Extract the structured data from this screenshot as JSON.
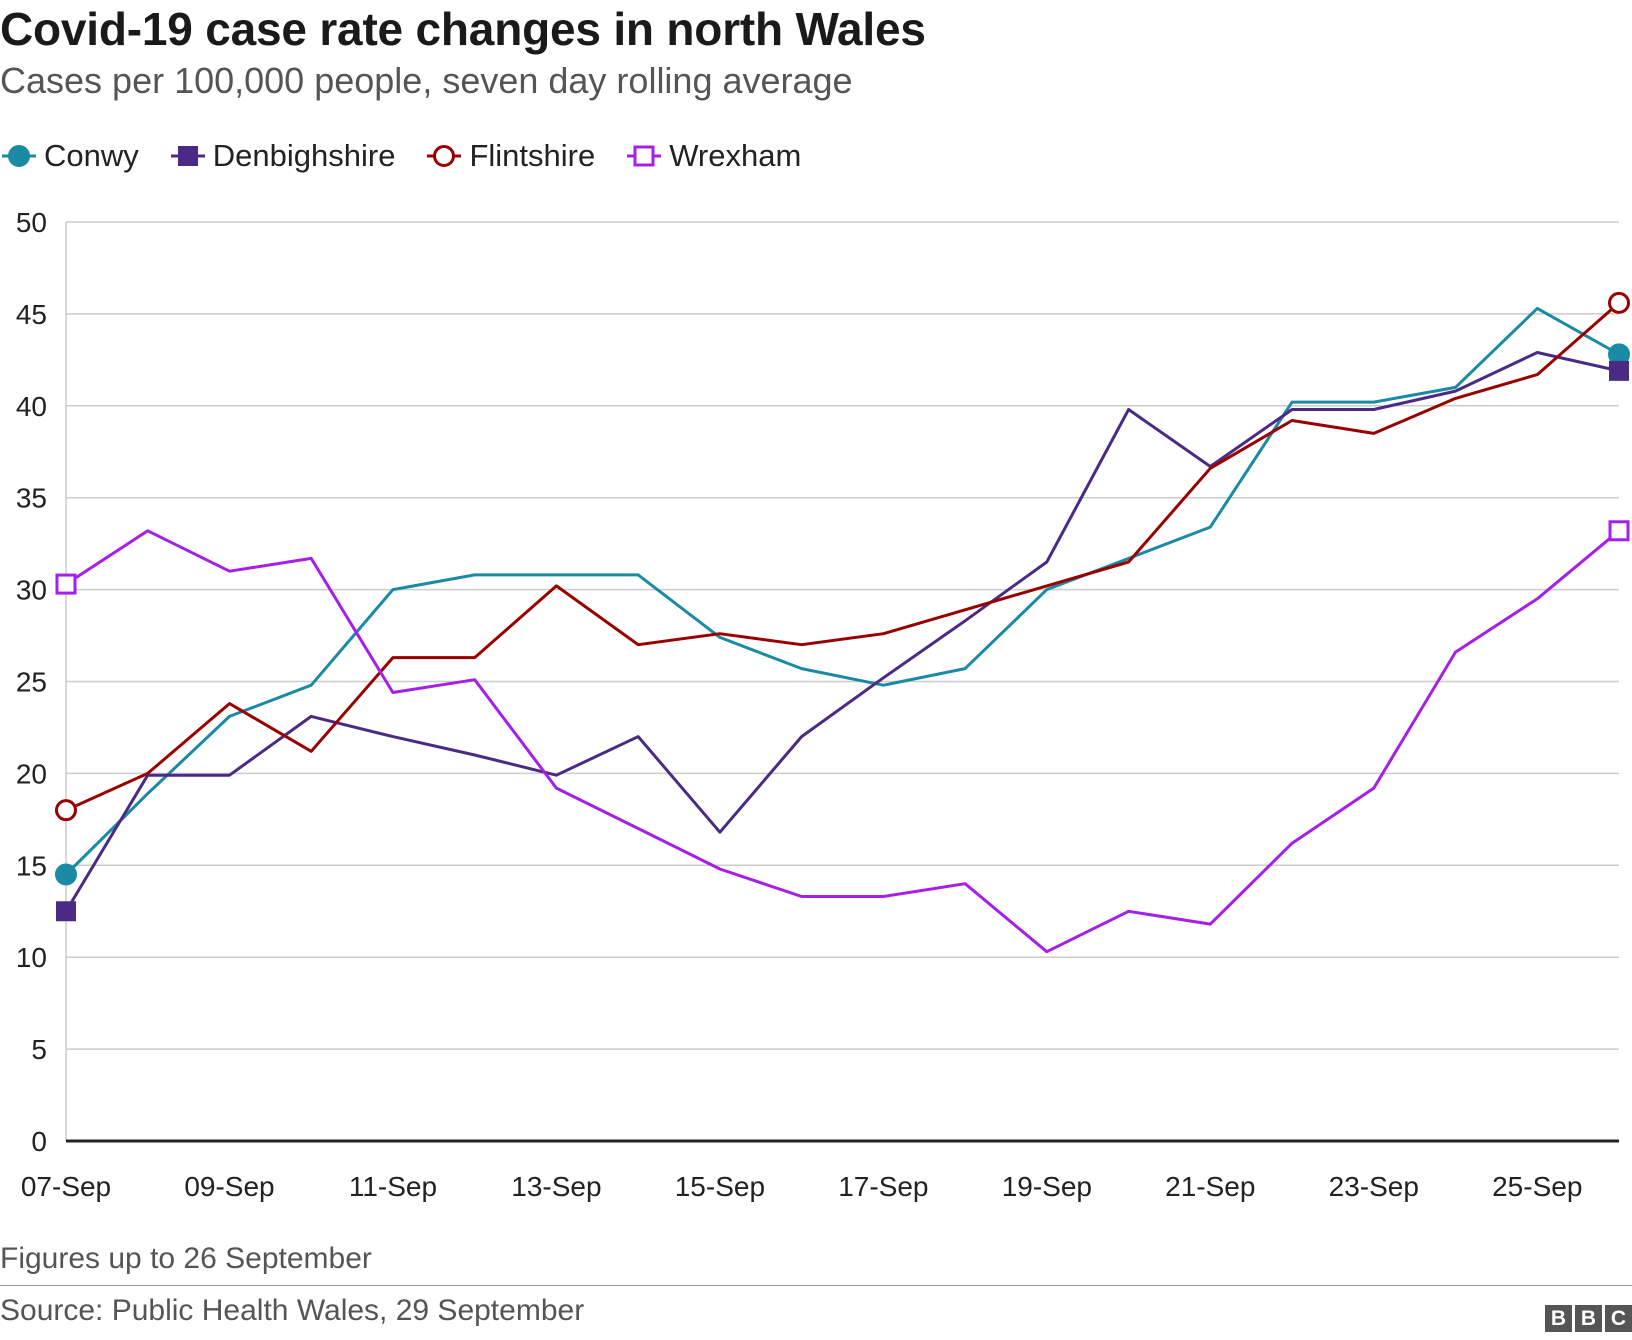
{
  "chart_data": {
    "type": "line",
    "title": "Covid-19 case rate changes in north Wales",
    "subtitle": "Cases per 100,000 people, seven day rolling average",
    "x": [
      "07-Sep",
      "08-Sep",
      "09-Sep",
      "10-Sep",
      "11-Sep",
      "12-Sep",
      "13-Sep",
      "14-Sep",
      "15-Sep",
      "16-Sep",
      "17-Sep",
      "18-Sep",
      "19-Sep",
      "20-Sep",
      "21-Sep",
      "22-Sep",
      "23-Sep",
      "24-Sep",
      "25-Sep",
      "26-Sep"
    ],
    "x_tick_labels": [
      "07-Sep",
      "09-Sep",
      "11-Sep",
      "13-Sep",
      "15-Sep",
      "17-Sep",
      "19-Sep",
      "21-Sep",
      "23-Sep",
      "25-Sep"
    ],
    "ylim": [
      0,
      50
    ],
    "y_ticks": [
      0,
      5,
      10,
      15,
      20,
      25,
      30,
      35,
      40,
      45,
      50
    ],
    "grid": true,
    "legend_position": "top-left",
    "series": [
      {
        "name": "Conwy",
        "color": "#1a8aa5",
        "marker": "filled-circle",
        "values": [
          14.5,
          18.9,
          23.1,
          24.8,
          30.0,
          30.8,
          30.8,
          30.8,
          27.4,
          25.7,
          24.8,
          25.7,
          30.0,
          31.7,
          33.4,
          40.2,
          40.2,
          41.0,
          45.3,
          42.8
        ]
      },
      {
        "name": "Denbighshire",
        "color": "#4b2a85",
        "marker": "filled-square",
        "values": [
          12.5,
          19.9,
          19.9,
          23.1,
          22.0,
          21.0,
          19.9,
          22.0,
          16.8,
          22.0,
          25.2,
          28.3,
          31.5,
          39.8,
          36.7,
          39.8,
          39.8,
          40.8,
          42.9,
          41.9
        ]
      },
      {
        "name": "Flintshire",
        "color": "#990000",
        "marker": "open-circle",
        "values": [
          18.0,
          20.0,
          23.8,
          21.2,
          26.3,
          26.3,
          30.2,
          27.0,
          27.6,
          27.0,
          27.6,
          28.9,
          30.2,
          31.5,
          36.6,
          39.2,
          38.5,
          40.4,
          41.7,
          45.6
        ]
      },
      {
        "name": "Wrexham",
        "color": "#a61fe8",
        "marker": "open-square",
        "values": [
          30.3,
          33.2,
          31.0,
          31.7,
          24.4,
          25.1,
          19.2,
          17.0,
          14.8,
          13.3,
          13.3,
          14.0,
          10.3,
          12.5,
          11.8,
          16.2,
          19.2,
          26.6,
          29.5,
          33.2
        ]
      }
    ]
  },
  "footer": {
    "note": "Figures up to 26 September",
    "source": "Source: Public Health Wales, 29 September",
    "logo_letters": [
      "B",
      "B",
      "C"
    ]
  }
}
